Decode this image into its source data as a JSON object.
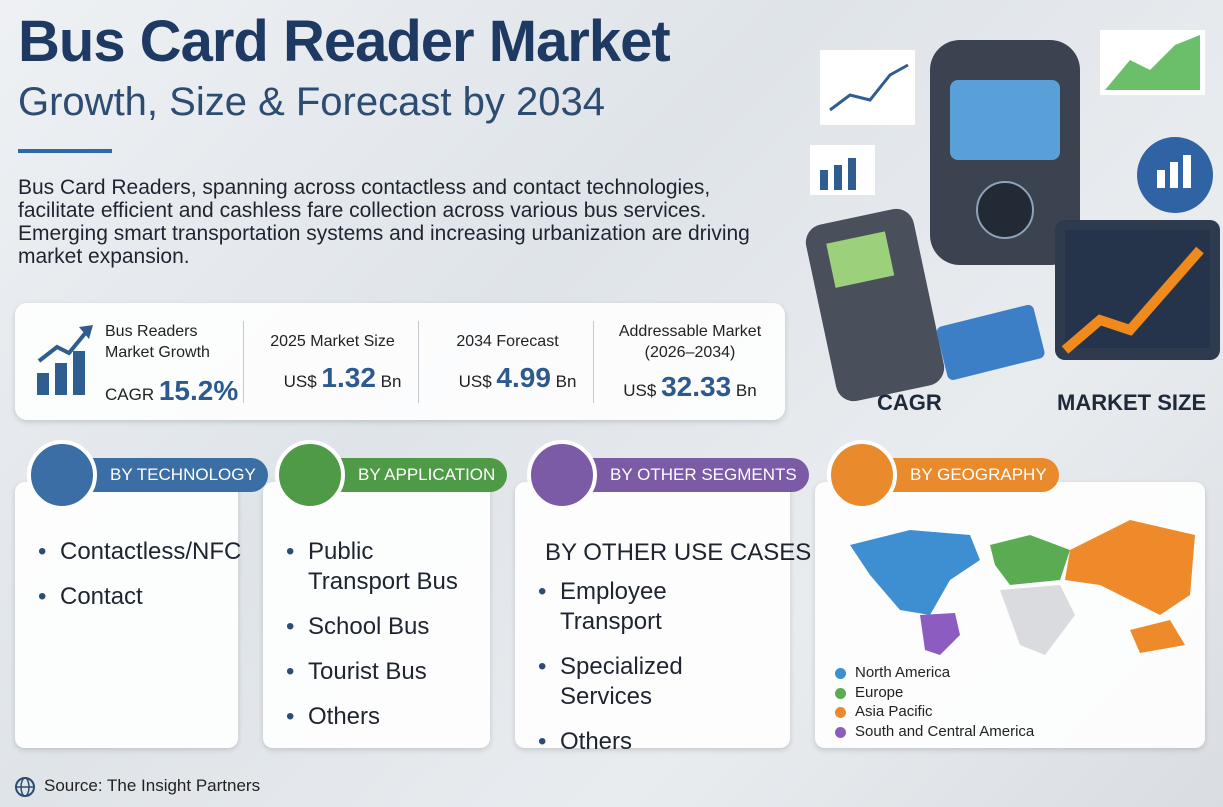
{
  "header": {
    "title": "Bus Card Reader Market",
    "subtitle": "Growth, Size & Forecast by 2034",
    "description": "Bus Card Readers, spanning across contactless and contact technologies, facilitate efficient and cashless fare collection across various bus services. Emerging smart transportation systems and increasing urbanization are driving market expansion."
  },
  "stats": [
    {
      "label": "Bus Readers Market Growth",
      "prefix": "CAGR",
      "value": "15.2%"
    },
    {
      "label": "2025 Market Size",
      "prefix": "US$",
      "value": 1.32,
      "unit": "Bn"
    },
    {
      "label": "2034 Forecast",
      "prefix": "US$",
      "value": 4.99,
      "unit": "Bn"
    },
    {
      "label": "Addressable Market (2026–2034)",
      "prefix": "US$",
      "value": 32.33,
      "unit": "Bn"
    }
  ],
  "illustration": {
    "labels": [
      "CAGR",
      "MARKET SIZE"
    ]
  },
  "segments": [
    {
      "title": "BY TECHNOLOGY",
      "color": "#3a6ea5",
      "items": [
        "Contactless/NFC",
        "Contact"
      ]
    },
    {
      "title": "BY APPLICATION",
      "color": "#4f9a46",
      "items": [
        "Public Transport Bus",
        "School Bus",
        "Tourist Bus",
        "Others"
      ]
    },
    {
      "title": "BY OTHER SEGMENTS",
      "color": "#7b5ba6",
      "subtitle": "BY OTHER USE CASES",
      "items": [
        "Employee Transport",
        "Specialized Services",
        "Others"
      ]
    },
    {
      "title": "BY GEOGRAPHY",
      "color": "#e98a2c",
      "legend": [
        {
          "name": "North America",
          "color": "#3d8fd1"
        },
        {
          "name": "Europe",
          "color": "#5aab52"
        },
        {
          "name": "Asia Pacific",
          "color": "#ef8a2a"
        },
        {
          "name": "South and Central America",
          "color": "#8d5cc0"
        }
      ]
    }
  ],
  "source": "Source: The Insight Partners"
}
